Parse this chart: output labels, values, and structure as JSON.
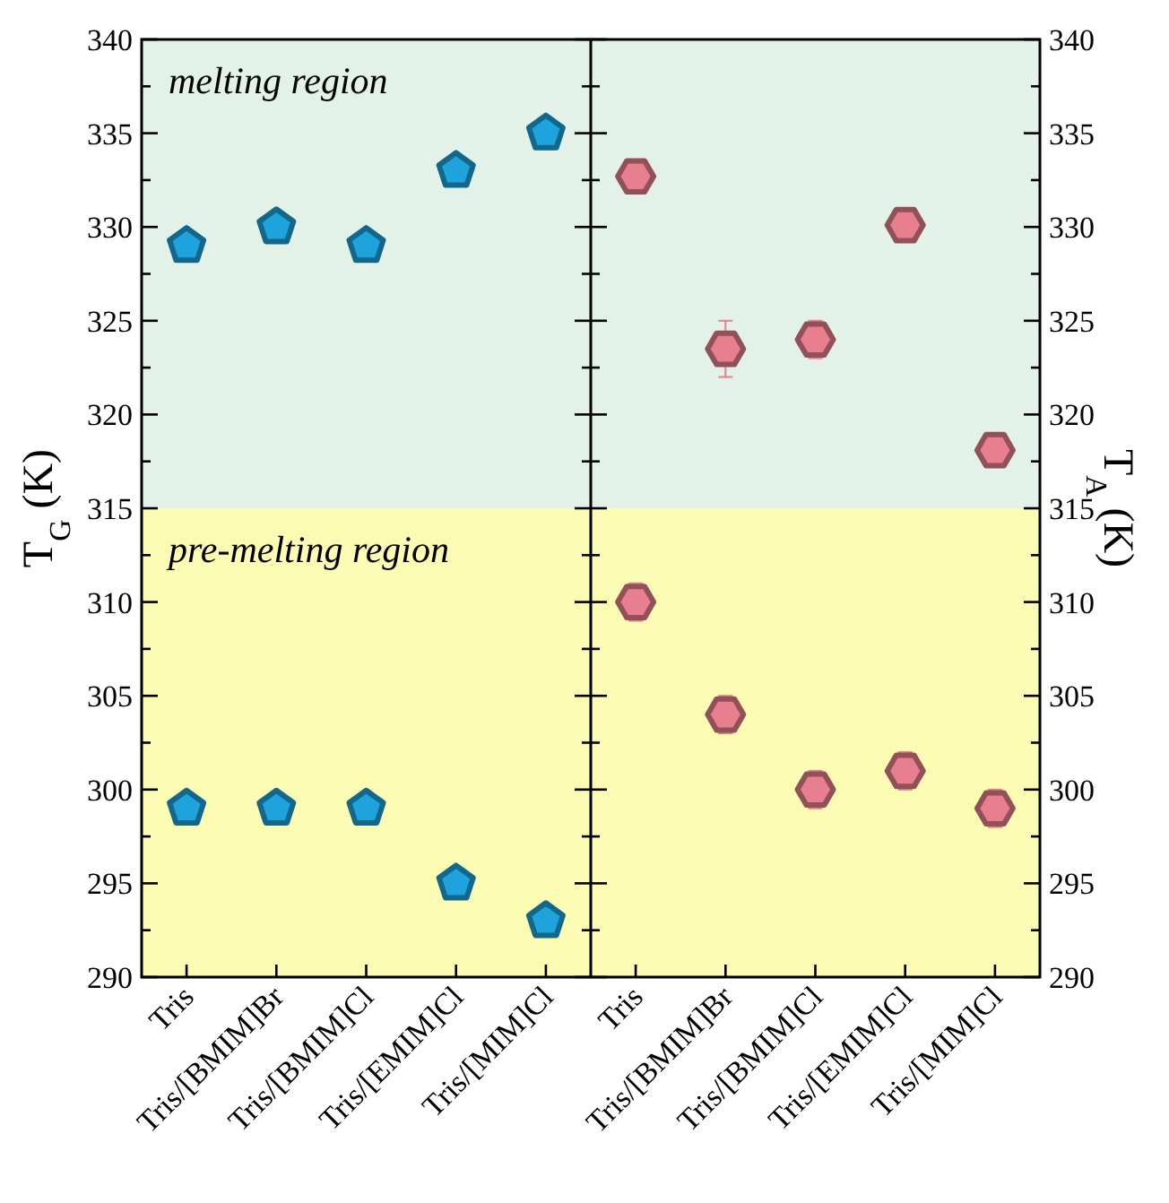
{
  "chart_data": [
    {
      "type": "scatter",
      "ylabel": "T$_{G}$ (K)",
      "categories": [
        "Tris",
        "Tris/[BMIM]Br",
        "Tris/[BMIM]Cl",
        "Tris/[EMIM]Cl",
        "Tris/[MIM]Cl"
      ],
      "series": [
        {
          "color": "#1fa3dc",
          "values": [
            329,
            330,
            329,
            333,
            335
          ],
          "errors": [
            0.5,
            0.5,
            0.5,
            0.5,
            0.5
          ]
        },
        {
          "color": "#1fa3dc",
          "values": [
            299,
            299,
            299,
            295,
            293
          ],
          "errors": [
            0.5,
            0.5,
            0.5,
            0.5,
            0.5
          ]
        }
      ],
      "ylim": [
        290,
        340
      ],
      "yticks": [
        290,
        {
          "value": 292.5,
          "label": null
        },
        295,
        {
          "value": 297.5,
          "label": null
        },
        300,
        {
          "value": 302.5,
          "label": null
        },
        305,
        {
          "value": 307.5,
          "label": null
        },
        310,
        {
          "value": 312.5,
          "label": null
        },
        315,
        {
          "value": 317.5,
          "label": null
        },
        320,
        {
          "value": 322.5,
          "label": null
        },
        325,
        {
          "value": 327.5,
          "label": null
        },
        330,
        {
          "value": 332.5,
          "label": null
        },
        335,
        {
          "value": 337.5,
          "label": null
        },
        340
      ],
      "bands": [
        {
          "axis": "y",
          "from": 315,
          "to": 340,
          "label": "melting region",
          "color": "#e2f2e8"
        },
        {
          "axis": "y",
          "from": 290,
          "to": 315,
          "label": "pre-melting region",
          "color": "#fcfbb4"
        }
      ]
    },
    {
      "type": "scatter",
      "ylabel": "T$_{A}$ (K)",
      "categories": [
        "Tris",
        "Tris/[BMIM]Br",
        "Tris/[BMIM]Cl",
        "Tris/[EMIM]Cl",
        "Tris/[MIM]Cl"
      ],
      "series": [
        {
          "color": "#e87f8e",
          "values": [
            332.7,
            323.5,
            324,
            330.1,
            318.1
          ],
          "errors": [
            0.5,
            1.5,
            1,
            0.3,
            0.3
          ]
        },
        {
          "color": "#e87f8e",
          "values": [
            310,
            304,
            300,
            301,
            299
          ],
          "errors": [
            1,
            1,
            1,
            1,
            1
          ]
        }
      ],
      "ylim": [
        290,
        340
      ],
      "yticks": [
        290,
        {
          "value": 292.5,
          "label": null
        },
        295,
        {
          "value": 297.5,
          "label": null
        },
        300,
        {
          "value": 302.5,
          "label": null
        },
        305,
        {
          "value": 307.5,
          "label": null
        },
        310,
        {
          "value": 312.5,
          "label": null
        },
        315,
        {
          "value": 317.5,
          "label": null
        },
        320,
        {
          "value": 322.5,
          "label": null
        },
        325,
        {
          "value": 327.5,
          "label": null
        },
        330,
        {
          "value": 332.5,
          "label": null
        },
        335,
        {
          "value": 337.5,
          "label": null
        },
        340
      ],
      "bands": [
        {
          "axis": "y",
          "from": 315,
          "to": 340,
          "color": "#e2f2e8"
        },
        {
          "axis": "y",
          "from": 290,
          "to": 315,
          "color": "#fcfbb4"
        }
      ]
    }
  ]
}
